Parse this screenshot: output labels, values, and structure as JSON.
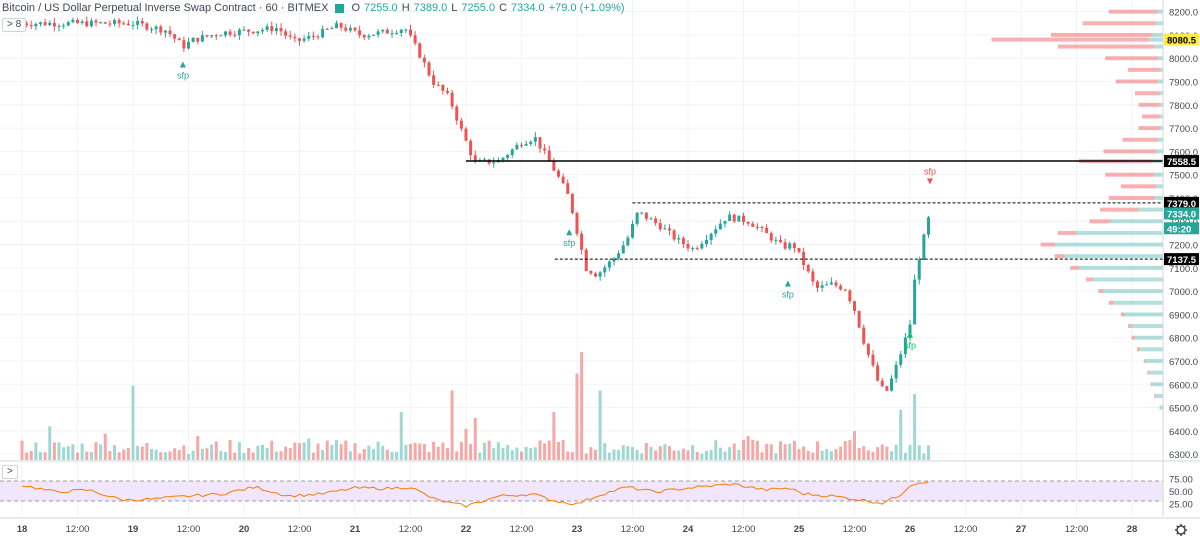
{
  "header": {
    "title": "Bitcoin / US Dollar Perpetual Inverse Swap Contract · 60 · BITMEX",
    "open_label": "O",
    "open": "7255.0",
    "high_label": "H",
    "high": "7389.0",
    "low_label": "L",
    "low": "7255.0",
    "close_label": "C",
    "close": "7334.0",
    "change": "+79.0 (+1.09%)",
    "collapse_main": "> 8",
    "collapse_rsi": ">"
  },
  "colors": {
    "up": "#26a69a",
    "down": "#ef5350",
    "volume_up": "#9fd8d2",
    "volume_down": "#f5a8a6",
    "profile_up": "#26a69a",
    "profile_down": "#ef5350",
    "rsi_line": "#f57c00",
    "rsi_band": "#f1e6fb",
    "grid": "#f0f3fa",
    "axis_text": "#434651"
  },
  "chart_data": {
    "type": "candlestick",
    "price_axis": {
      "range": [
        6275,
        8250
      ],
      "ticks": [
        "8200.0",
        "8100.0",
        "8000.0",
        "7900.0",
        "7800.0",
        "7700.0",
        "7600.0",
        "7500.0",
        "7400.0",
        "7300.0",
        "7200.0",
        "7100.0",
        "7000.0",
        "6900.0",
        "6800.0",
        "6700.0",
        "6600.0",
        "6500.0",
        "6400.0",
        "6300.0"
      ]
    },
    "time_axis": {
      "ticks": [
        {
          "label": "18",
          "day": 0,
          "bold": true
        },
        {
          "label": "12:00",
          "day": 0.5
        },
        {
          "label": "19",
          "day": 1,
          "bold": true
        },
        {
          "label": "12:00",
          "day": 1.5
        },
        {
          "label": "20",
          "day": 2,
          "bold": true
        },
        {
          "label": "12:00",
          "day": 2.5
        },
        {
          "label": "21",
          "day": 3,
          "bold": true
        },
        {
          "label": "12:00",
          "day": 3.5
        },
        {
          "label": "22",
          "day": 4,
          "bold": true
        },
        {
          "label": "12:00",
          "day": 4.5
        },
        {
          "label": "23",
          "day": 5,
          "bold": true
        },
        {
          "label": "12:00",
          "day": 5.5
        },
        {
          "label": "24",
          "day": 6,
          "bold": true
        },
        {
          "label": "12:00",
          "day": 6.5
        },
        {
          "label": "25",
          "day": 7,
          "bold": true
        },
        {
          "label": "12:00",
          "day": 7.5
        },
        {
          "label": "26",
          "day": 8,
          "bold": true
        },
        {
          "label": "12:00",
          "day": 8.5
        },
        {
          "label": "27",
          "day": 9,
          "bold": true
        },
        {
          "label": "12:00",
          "day": 9.5
        },
        {
          "label": "28",
          "day": 10,
          "bold": true
        }
      ]
    },
    "price_keypoints": [
      [
        1.0,
        8150
      ],
      [
        1.3,
        8120
      ],
      [
        1.45,
        8050
      ],
      [
        1.55,
        8080
      ],
      [
        1.8,
        8110
      ],
      [
        2.1,
        8120
      ],
      [
        2.3,
        8130
      ],
      [
        2.45,
        8070
      ],
      [
        2.6,
        8090
      ],
      [
        2.85,
        8140
      ],
      [
        3.05,
        8100
      ],
      [
        3.25,
        8110
      ],
      [
        3.45,
        8130
      ],
      [
        3.6,
        8000
      ],
      [
        3.7,
        7900
      ],
      [
        3.85,
        7830
      ],
      [
        3.95,
        7700
      ],
      [
        4.08,
        7550
      ],
      [
        4.3,
        7560
      ],
      [
        4.5,
        7640
      ],
      [
        4.62,
        7660
      ],
      [
        4.72,
        7580
      ],
      [
        4.82,
        7500
      ],
      [
        4.93,
        7400
      ],
      [
        5.0,
        7260
      ],
      [
        5.08,
        7100
      ],
      [
        5.18,
        7070
      ],
      [
        5.33,
        7140
      ],
      [
        5.45,
        7220
      ],
      [
        5.55,
        7340
      ],
      [
        5.75,
        7280
      ],
      [
        5.9,
        7220
      ],
      [
        6.05,
        7180
      ],
      [
        6.2,
        7250
      ],
      [
        6.35,
        7320
      ],
      [
        6.55,
        7300
      ],
      [
        6.72,
        7240
      ],
      [
        6.85,
        7190
      ],
      [
        6.95,
        7200
      ],
      [
        7.05,
        7110
      ],
      [
        7.15,
        7010
      ],
      [
        7.3,
        7030
      ],
      [
        7.42,
        7010
      ],
      [
        7.5,
        6920
      ],
      [
        7.6,
        6760
      ],
      [
        7.72,
        6600
      ],
      [
        7.78,
        6560
      ],
      [
        7.85,
        6640
      ],
      [
        7.95,
        6780
      ],
      [
        8.0,
        6860
      ],
      [
        8.05,
        7080
      ],
      [
        8.1,
        7180
      ],
      [
        8.18,
        7334
      ]
    ],
    "volume_spikes": [
      [
        0.27,
        0.28
      ],
      [
        0.74,
        0.22
      ],
      [
        0.98,
        0.62
      ],
      [
        1.57,
        0.2
      ],
      [
        2.57,
        0.18
      ],
      [
        3.42,
        0.4
      ],
      [
        3.87,
        0.58
      ],
      [
        4.0,
        0.26
      ],
      [
        4.1,
        0.35
      ],
      [
        4.8,
        0.4
      ],
      [
        5.0,
        0.72
      ],
      [
        5.05,
        0.9
      ],
      [
        5.2,
        0.58
      ],
      [
        6.55,
        0.2
      ],
      [
        7.5,
        0.24
      ],
      [
        7.92,
        0.42
      ],
      [
        8.05,
        0.55
      ]
    ],
    "rsi": {
      "range": [
        0,
        100
      ],
      "ticks": [
        "75.00",
        "50.00",
        "25.00"
      ],
      "upper_band": 70,
      "lower_band": 30,
      "keypoints": [
        [
          0,
          62
        ],
        [
          0.3,
          48
        ],
        [
          0.6,
          52
        ],
        [
          0.9,
          32
        ],
        [
          1.2,
          34
        ],
        [
          1.5,
          40
        ],
        [
          1.8,
          44
        ],
        [
          2.1,
          58
        ],
        [
          2.4,
          40
        ],
        [
          2.7,
          44
        ],
        [
          3.0,
          56
        ],
        [
          3.3,
          55
        ],
        [
          3.5,
          58
        ],
        [
          3.7,
          35
        ],
        [
          3.85,
          26
        ],
        [
          4.0,
          20
        ],
        [
          4.3,
          40
        ],
        [
          4.6,
          44
        ],
        [
          4.8,
          30
        ],
        [
          5.0,
          24
        ],
        [
          5.2,
          42
        ],
        [
          5.45,
          58
        ],
        [
          5.7,
          48
        ],
        [
          6.0,
          56
        ],
        [
          6.4,
          64
        ],
        [
          6.7,
          52
        ],
        [
          6.9,
          56
        ],
        [
          7.05,
          44
        ],
        [
          7.3,
          40
        ],
        [
          7.5,
          34
        ],
        [
          7.75,
          26
        ],
        [
          7.9,
          40
        ],
        [
          8.0,
          62
        ],
        [
          8.1,
          68
        ],
        [
          8.18,
          70
        ]
      ]
    },
    "volume_profile": {
      "bins": [
        {
          "price": 8200,
          "up": 0.03,
          "down": 0.28
        },
        {
          "price": 8150,
          "up": 0.04,
          "down": 0.42
        },
        {
          "price": 8100,
          "up": 0.06,
          "down": 0.58
        },
        {
          "price": 8080,
          "up": 0.08,
          "down": 0.9
        },
        {
          "price": 8050,
          "up": 0.05,
          "down": 0.55
        },
        {
          "price": 8000,
          "up": 0.03,
          "down": 0.3
        },
        {
          "price": 7950,
          "up": 0.02,
          "down": 0.18
        },
        {
          "price": 7900,
          "up": 0.03,
          "down": 0.24
        },
        {
          "price": 7850,
          "up": 0.02,
          "down": 0.14
        },
        {
          "price": 7800,
          "up": 0.02,
          "down": 0.12
        },
        {
          "price": 7750,
          "up": 0.02,
          "down": 0.1
        },
        {
          "price": 7700,
          "up": 0.02,
          "down": 0.12
        },
        {
          "price": 7650,
          "up": 0.03,
          "down": 0.2
        },
        {
          "price": 7600,
          "up": 0.04,
          "down": 0.3
        },
        {
          "price": 7558,
          "up": 0.06,
          "down": 0.42
        },
        {
          "price": 7500,
          "up": 0.05,
          "down": 0.28
        },
        {
          "price": 7450,
          "up": 0.04,
          "down": 0.2
        },
        {
          "price": 7400,
          "up": 0.05,
          "down": 0.26
        },
        {
          "price": 7350,
          "up": 0.14,
          "down": 0.22
        },
        {
          "price": 7300,
          "up": 0.3,
          "down": 0.12
        },
        {
          "price": 7250,
          "up": 0.5,
          "down": 0.1
        },
        {
          "price": 7200,
          "up": 0.62,
          "down": 0.08
        },
        {
          "price": 7150,
          "up": 0.56,
          "down": 0.06
        },
        {
          "price": 7100,
          "up": 0.48,
          "down": 0.05
        },
        {
          "price": 7050,
          "up": 0.4,
          "down": 0.04
        },
        {
          "price": 7000,
          "up": 0.34,
          "down": 0.03
        },
        {
          "price": 6950,
          "up": 0.28,
          "down": 0.03
        },
        {
          "price": 6900,
          "up": 0.22,
          "down": 0.02
        },
        {
          "price": 6850,
          "up": 0.18,
          "down": 0.02
        },
        {
          "price": 6800,
          "up": 0.16,
          "down": 0.02
        },
        {
          "price": 6750,
          "up": 0.13,
          "down": 0.02
        },
        {
          "price": 6700,
          "up": 0.1,
          "down": 0.01
        },
        {
          "price": 6650,
          "up": 0.08,
          "down": 0.01
        },
        {
          "price": 6600,
          "up": 0.06,
          "down": 0.01
        },
        {
          "price": 6550,
          "up": 0.04,
          "down": 0.01
        },
        {
          "price": 6500,
          "up": 0.02,
          "down": 0.0
        }
      ]
    },
    "levels": [
      {
        "price": 7558.5,
        "label": "7558.5",
        "style": "solid",
        "start_day": 4.0
      },
      {
        "price": 7379.0,
        "label": "7379.0",
        "style": "dashed",
        "start_day": 5.5
      },
      {
        "price": 7137.5,
        "label": "7137.5",
        "style": "dashed",
        "start_day": 4.8
      }
    ],
    "price_badges": [
      {
        "price": 8080.5,
        "label": "8080.5",
        "bg": "#ffeb3b",
        "fg": "#000000"
      },
      {
        "price": 7334.0,
        "label": "7334.0",
        "bg": "#26a69a",
        "fg": "#ffffff"
      },
      {
        "price": 7270.0,
        "label": "49:20",
        "bg": "#26a69a",
        "fg": "#ffffff"
      }
    ],
    "annotations": [
      {
        "text": "sfp",
        "day": 1.45,
        "price": 7960,
        "color": "#26a69a",
        "dir": "up"
      },
      {
        "text": "sfp",
        "day": 4.93,
        "price": 7240,
        "color": "#26a69a",
        "dir": "up"
      },
      {
        "text": "sfp",
        "day": 6.9,
        "price": 7020,
        "color": "#26a69a",
        "dir": "up"
      },
      {
        "text": "sfp",
        "day": 8.0,
        "price": 6800,
        "color": "#00c853",
        "dir": "up"
      },
      {
        "text": "sfp",
        "day": 8.18,
        "price": 7450,
        "color": "#ef5350",
        "dir": "down"
      }
    ]
  }
}
